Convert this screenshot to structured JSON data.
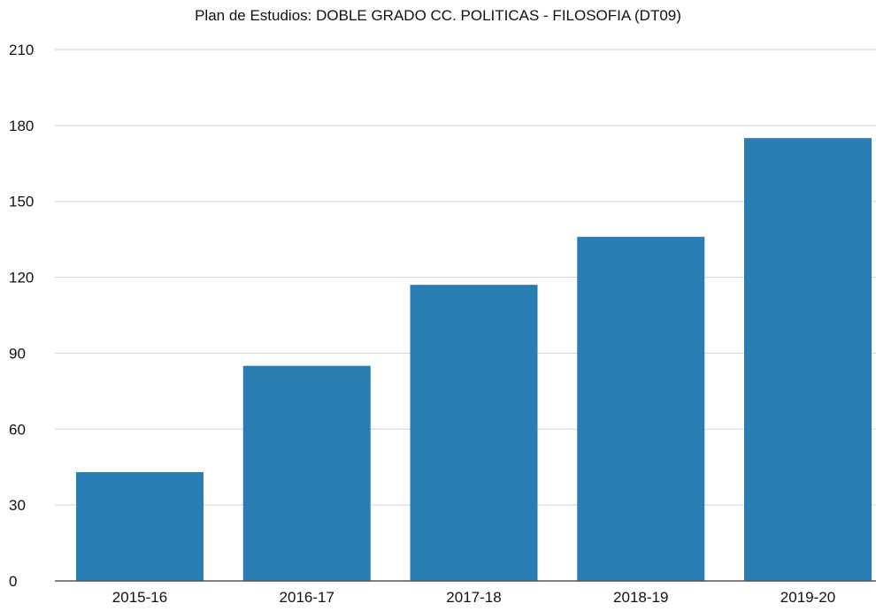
{
  "chart_data": {
    "type": "bar",
    "title": "Plan de Estudios: DOBLE GRADO CC. POLITICAS - FILOSOFIA (DT09)",
    "xlabel": "",
    "ylabel": "",
    "categories": [
      "2015-16",
      "2016-17",
      "2017-18",
      "2018-19",
      "2019-20"
    ],
    "values": [
      43,
      85,
      117,
      136,
      175
    ],
    "ylim": [
      0,
      210
    ],
    "yticks": [
      "0",
      "30",
      "60",
      "90",
      "120",
      "150",
      "180",
      "210"
    ],
    "grid": true,
    "legend": "none",
    "bar_color": "#2a7db3",
    "grid_color": "#c9d3df",
    "axis_color": "#555555"
  }
}
